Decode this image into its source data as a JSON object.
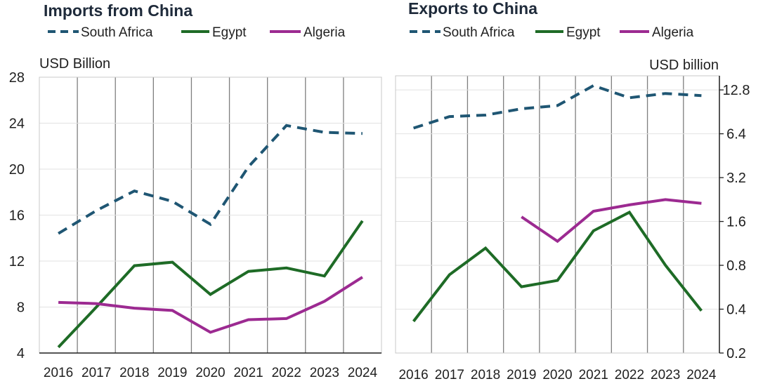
{
  "chart_data": [
    {
      "type": "line",
      "title": "Imports from China",
      "unit_label": "USD Billion",
      "x": [
        "2016",
        "2017",
        "2018",
        "2019",
        "2020",
        "2021",
        "2022",
        "2023",
        "2024"
      ],
      "ylim": [
        4,
        28
      ],
      "yticks": [
        "4",
        "8",
        "12",
        "16",
        "20",
        "24",
        "28"
      ],
      "grid": "vertical",
      "legend_position": "top",
      "series": [
        {
          "name": "South Africa",
          "color": "#1f5673",
          "style": "dashed",
          "values": [
            14.4,
            16.4,
            18.1,
            17.2,
            15.2,
            20.2,
            23.8,
            23.2,
            23.1
          ]
        },
        {
          "name": "Egypt",
          "color": "#1e6b26",
          "style": "solid",
          "values": [
            4.5,
            8.0,
            11.6,
            11.9,
            9.1,
            11.1,
            11.4,
            10.7,
            15.5
          ]
        },
        {
          "name": "Algeria",
          "color": "#9c2a91",
          "style": "solid",
          "values": [
            8.4,
            8.3,
            7.9,
            7.7,
            5.8,
            6.9,
            7.0,
            8.5,
            10.6
          ]
        }
      ]
    },
    {
      "type": "line",
      "title": "Exports to China",
      "unit_label": "USD billion",
      "x": [
        "2016",
        "2017",
        "2018",
        "2019",
        "2020",
        "2021",
        "2022",
        "2023",
        "2024"
      ],
      "ylim": [
        0.2,
        16
      ],
      "yscale": "log",
      "yticks": [
        "0.2",
        "0.4",
        "0.8",
        "1.6",
        "3.2",
        "6.4",
        "12.8"
      ],
      "y_axis_side": "right",
      "grid": "vertical",
      "legend_position": "top",
      "series": [
        {
          "name": "South Africa",
          "color": "#1f5673",
          "style": "dashed",
          "values": [
            7.0,
            8.4,
            8.6,
            9.5,
            10.0,
            13.7,
            11.3,
            12.1,
            11.7
          ]
        },
        {
          "name": "Egypt",
          "color": "#1e6b26",
          "style": "solid",
          "values": [
            0.33,
            0.69,
            1.05,
            0.57,
            0.63,
            1.38,
            1.85,
            0.8,
            0.39
          ]
        },
        {
          "name": "Algeria",
          "color": "#9c2a91",
          "style": "solid",
          "values": [
            null,
            null,
            null,
            1.72,
            1.17,
            1.88,
            2.08,
            2.26,
            2.13
          ]
        }
      ]
    }
  ]
}
